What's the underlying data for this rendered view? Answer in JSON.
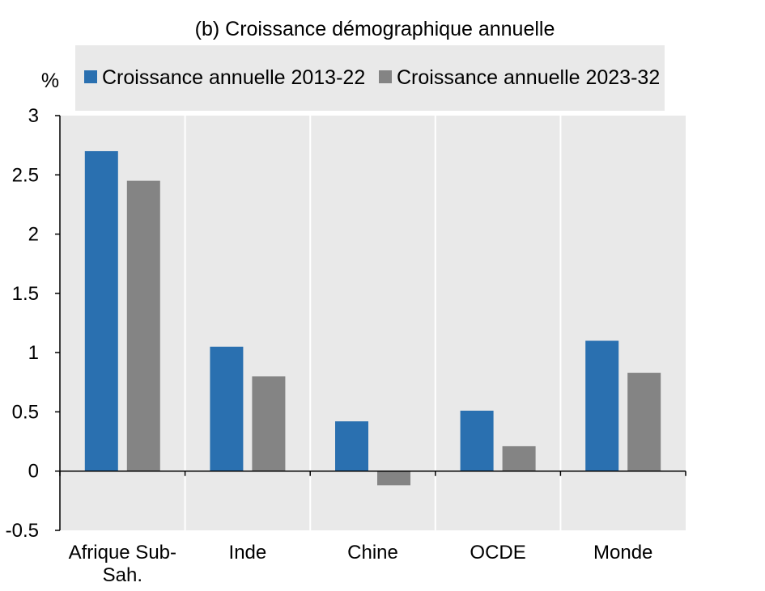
{
  "chart_data": {
    "type": "bar",
    "title": "(b) Croissance démographique annuelle",
    "ylabel": "%",
    "xlabel": "",
    "categories": [
      "Afrique Sub-Sah.",
      "Inde",
      "Chine",
      "OCDE",
      "Monde"
    ],
    "category_lines": [
      [
        "Afrique Sub-",
        "Sah."
      ],
      [
        "Inde"
      ],
      [
        "Chine"
      ],
      [
        "OCDE"
      ],
      [
        "Monde"
      ]
    ],
    "series": [
      {
        "name": "Croissance annuelle 2013-22",
        "color": "#2a70b0",
        "values": [
          2.7,
          1.05,
          0.42,
          0.51,
          1.1
        ]
      },
      {
        "name": "Croissance annuelle 2023-32",
        "color": "#848484",
        "values": [
          2.45,
          0.8,
          -0.12,
          0.21,
          0.83
        ]
      }
    ],
    "ylim": [
      -0.5,
      3
    ],
    "yticks": [
      3,
      2.5,
      2,
      1.5,
      1,
      0.5,
      0,
      -0.5
    ],
    "ytick_labels": [
      "3",
      "2.5",
      "2",
      "1.5",
      "1",
      "0.5",
      "0",
      "-0.5"
    ],
    "grid": "vertical separators between categories",
    "legend_position": "top",
    "plot_background": "#e9e9e9"
  }
}
